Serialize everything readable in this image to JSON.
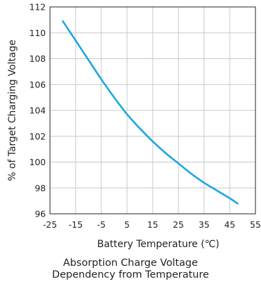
{
  "chart_data": {
    "type": "line",
    "xlabel": "Battery Temperature (℃)",
    "ylabel": "% of Target Charging Voltage",
    "xlim": [
      -25,
      55
    ],
    "ylim": [
      96,
      112
    ],
    "x_ticks": [
      "-25",
      "-15",
      "-5",
      "5",
      "15",
      "25",
      "35",
      "45",
      "55"
    ],
    "y_ticks": [
      "96",
      "98",
      "100",
      "102",
      "104",
      "106",
      "108",
      "110",
      "112"
    ],
    "grid": true,
    "series": [
      {
        "color": "#1aa7e0",
        "x": [
          -20,
          -15,
          -10,
          -5,
          0,
          5,
          10,
          15,
          20,
          25,
          30,
          35,
          40,
          45,
          48
        ],
        "y": [
          110.9,
          109.4,
          107.9,
          106.4,
          105.0,
          103.7,
          102.6,
          101.6,
          100.7,
          99.9,
          99.1,
          98.4,
          97.8,
          97.2,
          96.8
        ]
      }
    ]
  },
  "caption": {
    "line1": "Absorption Charge Voltage",
    "line2": "Dependency from Temperature"
  }
}
